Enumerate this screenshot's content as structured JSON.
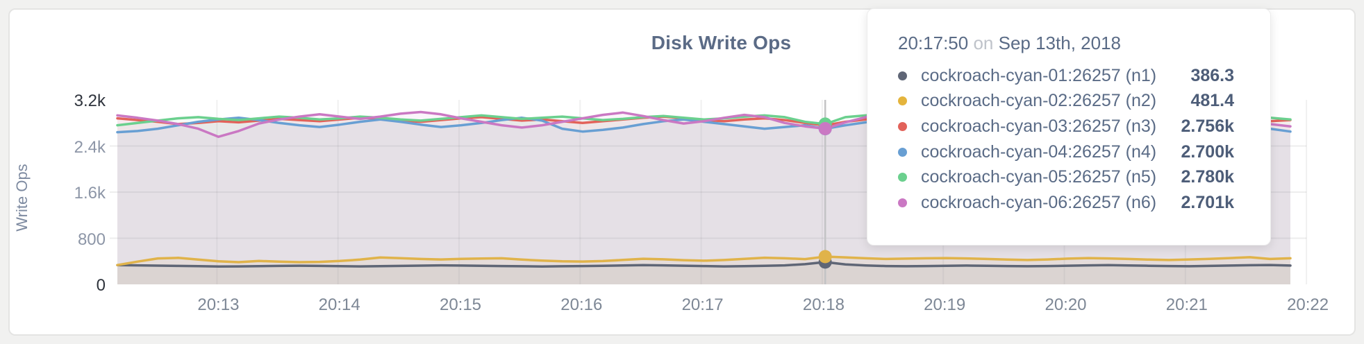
{
  "card": {
    "title": "Disk Write Ops"
  },
  "axes": {
    "y_label": "Write Ops",
    "y_ticks": [
      {
        "label": "0",
        "value": 0,
        "emphasis": true
      },
      {
        "label": "800",
        "value": 800,
        "emphasis": false
      },
      {
        "label": "1.6k",
        "value": 1600,
        "emphasis": false
      },
      {
        "label": "2.4k",
        "value": 2400,
        "emphasis": false
      },
      {
        "label": "3.2k",
        "value": 3200,
        "emphasis": true
      }
    ],
    "x_ticks": [
      "20:13",
      "20:14",
      "20:15",
      "20:16",
      "20:17",
      "20:18",
      "20:19",
      "20:20",
      "20:21",
      "20:22"
    ]
  },
  "tooltip": {
    "time": "20:17:50",
    "connector": "on",
    "date": "Sep 13th, 2018",
    "rows": [
      {
        "name": "cockroach-cyan-01:26257 (n1)",
        "value": "386.3",
        "color": "#5f6676"
      },
      {
        "name": "cockroach-cyan-02:26257 (n2)",
        "value": "481.4",
        "color": "#e4b43c"
      },
      {
        "name": "cockroach-cyan-03:26257 (n3)",
        "value": "2.756k",
        "color": "#e2625a"
      },
      {
        "name": "cockroach-cyan-04:26257 (n4)",
        "value": "2.700k",
        "color": "#689fd3"
      },
      {
        "name": "cockroach-cyan-05:26257 (n5)",
        "value": "2.780k",
        "color": "#6bd08e"
      },
      {
        "name": "cockroach-cyan-06:26257 (n6)",
        "value": "2.701k",
        "color": "#ca78c3"
      }
    ]
  },
  "chart_data": {
    "type": "line",
    "title": "Disk Write Ops",
    "ylabel": "Write Ops",
    "ylim": [
      0,
      3200
    ],
    "grid": true,
    "x_ticks": [
      "20:13",
      "20:14",
      "20:15",
      "20:16",
      "20:17",
      "20:18",
      "20:19",
      "20:20",
      "20:21",
      "20:22"
    ],
    "x_start_time": "20:12:10",
    "x_interval_seconds": 10,
    "hover": {
      "index": 35,
      "time": "20:17:50",
      "date": "Sep 13th, 2018"
    },
    "series": [
      {
        "name": "cockroach-cyan-03:26257 (n3)",
        "color": "#e2625a",
        "hover_value": 2756,
        "values": [
          2880,
          2850,
          2820,
          2780,
          2800,
          2830,
          2810,
          2840,
          2870,
          2850,
          2830,
          2860,
          2890,
          2870,
          2840,
          2820,
          2850,
          2880,
          2900,
          2870,
          2840,
          2860,
          2830,
          2800,
          2830,
          2860,
          2890,
          2910,
          2880,
          2850,
          2830,
          2860,
          2880,
          2850,
          2800,
          2756,
          2820,
          2860,
          2890,
          2920,
          2880,
          2850,
          2870,
          2840,
          2810,
          2840,
          2870,
          2900,
          2870,
          2840,
          2860,
          2880,
          2850,
          2830,
          2860,
          2890,
          2860,
          2830,
          2850
        ]
      },
      {
        "name": "cockroach-cyan-04:26257 (n4)",
        "color": "#689fd3",
        "hover_value": 2700,
        "values": [
          2640,
          2660,
          2700,
          2760,
          2820,
          2860,
          2890,
          2850,
          2800,
          2760,
          2730,
          2770,
          2820,
          2860,
          2820,
          2770,
          2730,
          2760,
          2800,
          2850,
          2890,
          2840,
          2700,
          2650,
          2680,
          2720,
          2780,
          2830,
          2860,
          2820,
          2780,
          2740,
          2700,
          2730,
          2760,
          2700,
          2760,
          2810,
          2860,
          2900,
          2850,
          2790,
          2740,
          2700,
          2750,
          2800,
          2840,
          2800,
          2750,
          2710,
          2760,
          2810,
          2850,
          2810,
          2770,
          2730,
          2780,
          2700,
          2650
        ]
      },
      {
        "name": "cockroach-cyan-05:26257 (n5)",
        "color": "#6bd08e",
        "hover_value": 2780,
        "values": [
          2760,
          2800,
          2840,
          2880,
          2900,
          2870,
          2850,
          2880,
          2910,
          2890,
          2860,
          2880,
          2910,
          2890,
          2860,
          2840,
          2870,
          2900,
          2930,
          2900,
          2870,
          2890,
          2910,
          2880,
          2850,
          2870,
          2900,
          2920,
          2890,
          2860,
          2880,
          2910,
          2930,
          2900,
          2820,
          2780,
          2900,
          2930,
          2950,
          2920,
          2890,
          2860,
          2890,
          2910,
          2880,
          2860,
          2890,
          2920,
          2900,
          2870,
          2890,
          2910,
          2880,
          2860,
          2880,
          2900,
          2920,
          2890,
          2860
        ]
      },
      {
        "name": "cockroach-cyan-06:26257 (n6)",
        "color": "#ca78c3",
        "hover_value": 2701,
        "values": [
          2930,
          2890,
          2840,
          2780,
          2700,
          2560,
          2660,
          2790,
          2860,
          2910,
          2950,
          2910,
          2870,
          2910,
          2960,
          2990,
          2950,
          2880,
          2820,
          2760,
          2720,
          2760,
          2820,
          2880,
          2940,
          2980,
          2920,
          2850,
          2790,
          2830,
          2890,
          2940,
          2900,
          2800,
          2740,
          2701,
          2810,
          2900,
          2970,
          3010,
          2950,
          2880,
          2820,
          2770,
          2810,
          2870,
          2930,
          2980,
          2930,
          2870,
          2810,
          2770,
          2820,
          2880,
          2930,
          2890,
          2830,
          2780,
          2740
        ]
      },
      {
        "name": "cockroach-cyan-01:26257 (n1)",
        "color": "#5f6676",
        "hover_value": 386.3,
        "values": [
          335,
          330,
          325,
          320,
          315,
          310,
          312,
          316,
          320,
          324,
          320,
          315,
          312,
          316,
          320,
          325,
          330,
          326,
          322,
          318,
          314,
          310,
          314,
          318,
          322,
          328,
          334,
          330,
          324,
          318,
          312,
          316,
          322,
          330,
          350,
          386.3,
          345,
          328,
          318,
          314,
          318,
          322,
          326,
          322,
          318,
          314,
          318,
          324,
          330,
          334,
          328,
          322,
          318,
          314,
          320,
          326,
          332,
          336,
          326
        ]
      },
      {
        "name": "cockroach-cyan-02:26257 (n2)",
        "color": "#e0b34a",
        "hover_value": 481.4,
        "values": [
          335,
          395,
          450,
          460,
          430,
          400,
          385,
          405,
          395,
          385,
          390,
          405,
          430,
          465,
          455,
          440,
          432,
          442,
          448,
          452,
          430,
          412,
          400,
          396,
          404,
          424,
          444,
          434,
          420,
          410,
          422,
          442,
          462,
          452,
          438,
          481.4,
          468,
          452,
          440,
          446,
          452,
          456,
          450,
          440,
          430,
          422,
          432,
          446,
          456,
          450,
          440,
          430,
          422,
          432,
          442,
          456,
          470,
          440,
          452
        ]
      }
    ]
  }
}
